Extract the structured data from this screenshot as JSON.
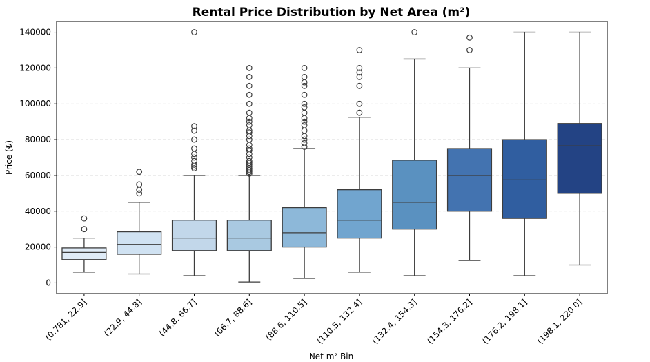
{
  "chart_data": {
    "type": "boxplot",
    "title": "Rental Price Distribution by Net Area (m²)",
    "xlabel": "Net m² Bin",
    "ylabel": "Price (₺)",
    "ylim": [
      -6000,
      146000
    ],
    "yticks": [
      0,
      20000,
      40000,
      60000,
      80000,
      100000,
      120000,
      140000
    ],
    "grid": true,
    "categories": [
      "(0.781, 22.9]",
      "(22.9, 44.8]",
      "(44.8, 66.7]",
      "(66.7, 88.6]",
      "(88.6, 110.5]",
      "(110.5, 132.4]",
      "(132.4, 154.3]",
      "(154.3, 176.2]",
      "(176.2, 198.1]",
      "(198.1, 220.0]"
    ],
    "colors": [
      "#dfebf7",
      "#d0e2f2",
      "#c2d7ea",
      "#a9c9e1",
      "#8db8d9",
      "#71a5cf",
      "#5a91c0",
      "#4373b0",
      "#305ea0",
      "#234384"
    ],
    "boxes": [
      {
        "whisker_low": 6000,
        "q1": 13000,
        "median": 17000,
        "q3": 19500,
        "whisker_high": 25000,
        "outliers": [
          30000,
          30000,
          36000
        ]
      },
      {
        "whisker_low": 5000,
        "q1": 16000,
        "median": 21500,
        "q3": 28500,
        "whisker_high": 45000,
        "outliers": [
          50000,
          52000,
          55000,
          55000,
          62000
        ]
      },
      {
        "whisker_low": 4000,
        "q1": 18000,
        "median": 25000,
        "q3": 35000,
        "whisker_high": 60000,
        "outliers": [
          64000,
          65000,
          66000,
          68000,
          70000,
          72000,
          75000,
          80000,
          85000,
          87500,
          140000
        ]
      },
      {
        "whisker_low": 500,
        "q1": 18000,
        "median": 25000,
        "q3": 35000,
        "whisker_high": 60000,
        "outliers": [
          61000,
          62000,
          63000,
          64000,
          65000,
          66000,
          67000,
          68000,
          70000,
          72000,
          74000,
          75000,
          77000,
          80000,
          82000,
          84000,
          85000,
          88000,
          90000,
          92000,
          95000,
          100000,
          105000,
          110000,
          115000,
          120000
        ]
      },
      {
        "whisker_low": 2500,
        "q1": 20000,
        "median": 28000,
        "q3": 42000,
        "whisker_high": 75000,
        "outliers": [
          76000,
          78000,
          80000,
          82000,
          85000,
          88000,
          90000,
          92000,
          95000,
          98000,
          100000,
          105000,
          110000,
          112000,
          115000,
          120000
        ]
      },
      {
        "whisker_low": 6000,
        "q1": 25000,
        "median": 35000,
        "q3": 52000,
        "whisker_high": 92500,
        "outliers": [
          95000,
          95000,
          100000,
          100000,
          110000,
          110000,
          115000,
          117500,
          120000,
          130000
        ]
      },
      {
        "whisker_low": 4000,
        "q1": 30000,
        "median": 45000,
        "q3": 68500,
        "whisker_high": 125000,
        "outliers": [
          140000
        ]
      },
      {
        "whisker_low": 12500,
        "q1": 40000,
        "median": 60000,
        "q3": 75000,
        "whisker_high": 120000,
        "outliers": [
          130000,
          137000
        ]
      },
      {
        "whisker_low": 4000,
        "q1": 36000,
        "median": 57500,
        "q3": 80000,
        "whisker_high": 140000,
        "outliers": []
      },
      {
        "whisker_low": 10000,
        "q1": 50000,
        "median": 76500,
        "q3": 89000,
        "whisker_high": 140000,
        "outliers": []
      }
    ]
  }
}
